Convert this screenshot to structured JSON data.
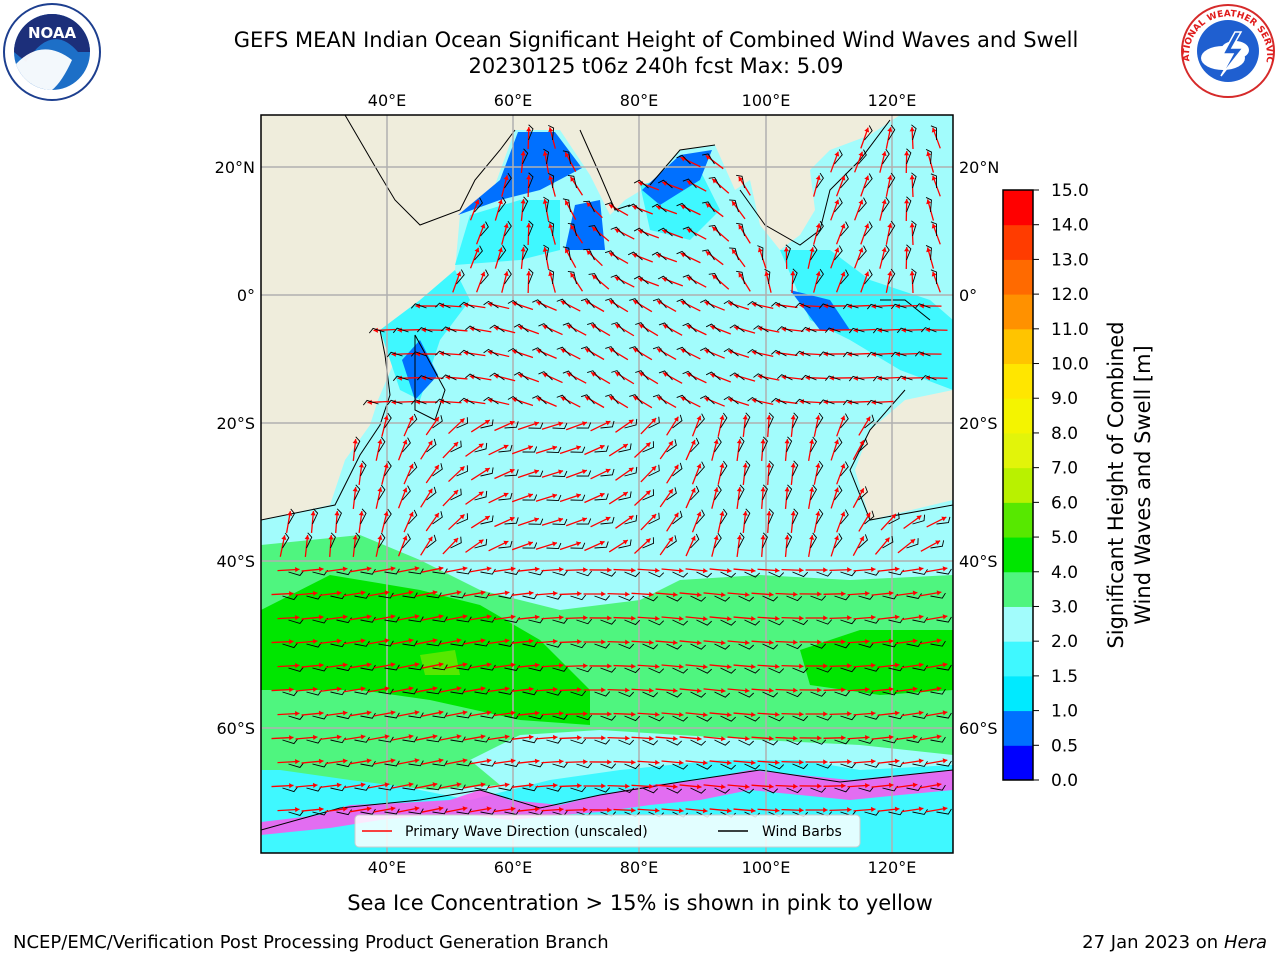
{
  "title_line1": "GEFS MEAN Indian Ocean Significant Height of Combined Wind Waves and Swell",
  "title_line2": "20230125 t06z 240h fcst   Max: 5.09",
  "logos": {
    "left": {
      "icon": "noaa-logo-icon",
      "text": "NOAA"
    },
    "right": {
      "icon": "nws-logo-icon",
      "text": "NATIONAL WEATHER SERVICE"
    }
  },
  "map": {
    "lon_ticks": [
      "40°E",
      "60°E",
      "80°E",
      "100°E",
      "120°E"
    ],
    "lat_ticks": [
      "20°N",
      "0°",
      "20°S",
      "40°S",
      "60°S"
    ],
    "land_color": "#efeddc",
    "legend": {
      "wave_direction": "Primary Wave Direction (unscaled)",
      "wind_barbs": "Wind Barbs",
      "wave_color": "#ff0000",
      "barb_color": "#000000"
    }
  },
  "colorbar": {
    "label_line1": "Significant Height of Combined",
    "label_line2": "Wind Waves and Swell [m]",
    "ticks": [
      "0.0",
      "0.5",
      "1.0",
      "1.5",
      "2.0",
      "3.0",
      "4.0",
      "5.0",
      "6.0",
      "7.0",
      "8.0",
      "9.0",
      "10.0",
      "11.0",
      "12.0",
      "13.0",
      "14.0",
      "15.0"
    ],
    "colors": [
      "#0000ff",
      "#0070ff",
      "#00eaff",
      "#3ff8ff",
      "#a2fcfc",
      "#4ff57f",
      "#00e600",
      "#57e800",
      "#b9f100",
      "#e2f40a",
      "#f4f400",
      "#ffe600",
      "#ffc400",
      "#ff9100",
      "#ff6a00",
      "#ff3c00",
      "#ff0000"
    ]
  },
  "footer": {
    "sea_ice": "Sea Ice Concentration > 15% is shown in pink to yellow",
    "branch": "NCEP/EMC/Verification Post Processing Product Generation Branch",
    "date": "27 Jan 2023 on",
    "host": "Hera"
  }
}
